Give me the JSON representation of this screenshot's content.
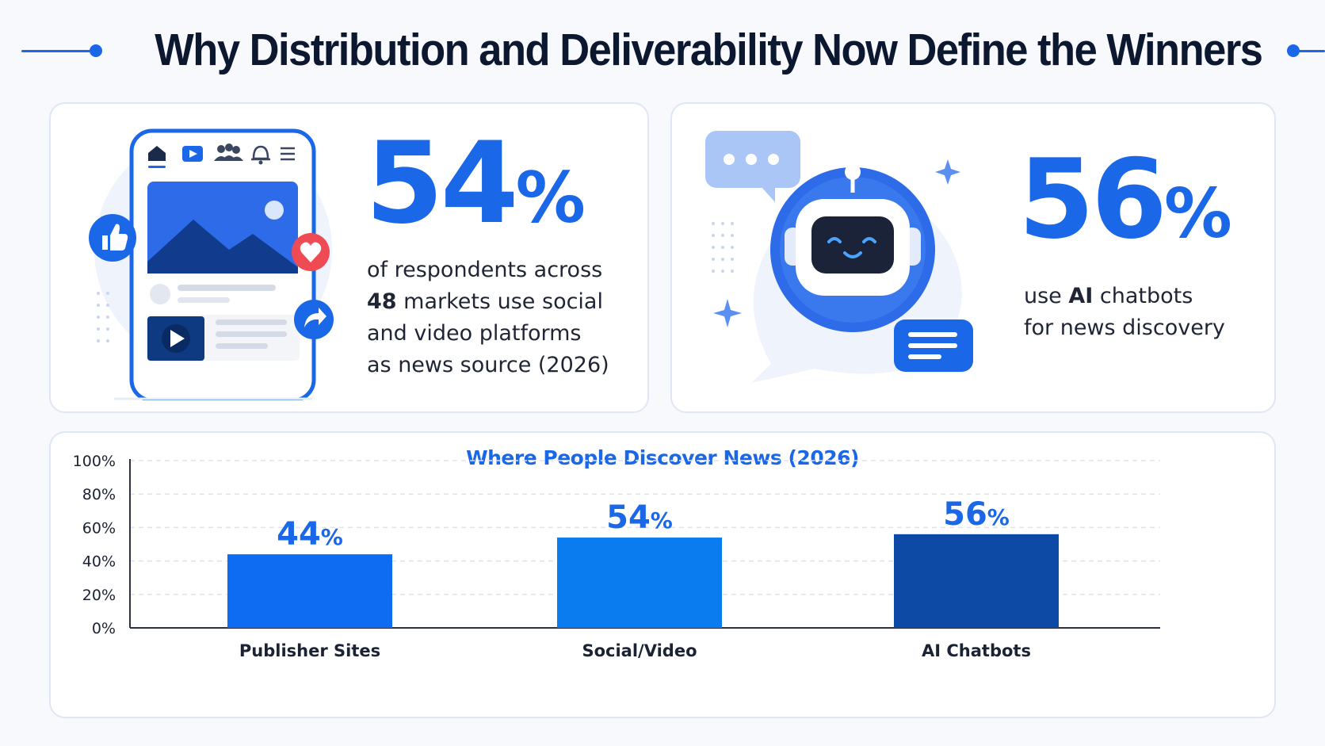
{
  "page": {
    "title": "Why Distribution and Deliverability Now Define the Winners"
  },
  "colors": {
    "accent": "#1a67e8",
    "bar_publisher": "#0d6cf2",
    "bar_social": "#0a7cf0",
    "bar_ai": "#0c4aa6",
    "like": "#1a67e8",
    "heart": "#ef4b55",
    "navy": "#0d3a7a"
  },
  "social_card": {
    "value": "54",
    "pct": "%",
    "desc_l1": "of respondents across",
    "desc_l2_bold": "48",
    "desc_l2": " markets use social",
    "desc_l3": "and video platforms",
    "desc_l4": "as news source (2026)",
    "icons": [
      "home-icon",
      "video-tab-icon",
      "people-icon",
      "bell-icon",
      "menu-icon",
      "image-icon",
      "like-icon",
      "heart-icon",
      "share-icon",
      "play-icon"
    ]
  },
  "ai_card": {
    "value": "56",
    "pct": "%",
    "desc_l1": "use ",
    "desc_l1_bold": "AI",
    "desc_l1_rest": " chatbots",
    "desc_l2": "for news discovery",
    "icons": [
      "chat-bubble-icon",
      "robot-icon",
      "sparkle-icon",
      "message-icon"
    ]
  },
  "chart_data": {
    "type": "bar",
    "title": "Where People Discover News (2026)",
    "categories": [
      "Publisher Sites",
      "Social/Video",
      "AI Chatbots"
    ],
    "values": [
      44,
      54,
      56
    ],
    "value_labels": [
      "44",
      "54",
      "56"
    ],
    "value_suffix": "%",
    "y_ticks": [
      "0%",
      "20%",
      "40%",
      "60%",
      "80%",
      "100%"
    ],
    "ylim": [
      0,
      100
    ],
    "grid": true,
    "xlabel": "",
    "ylabel": ""
  }
}
